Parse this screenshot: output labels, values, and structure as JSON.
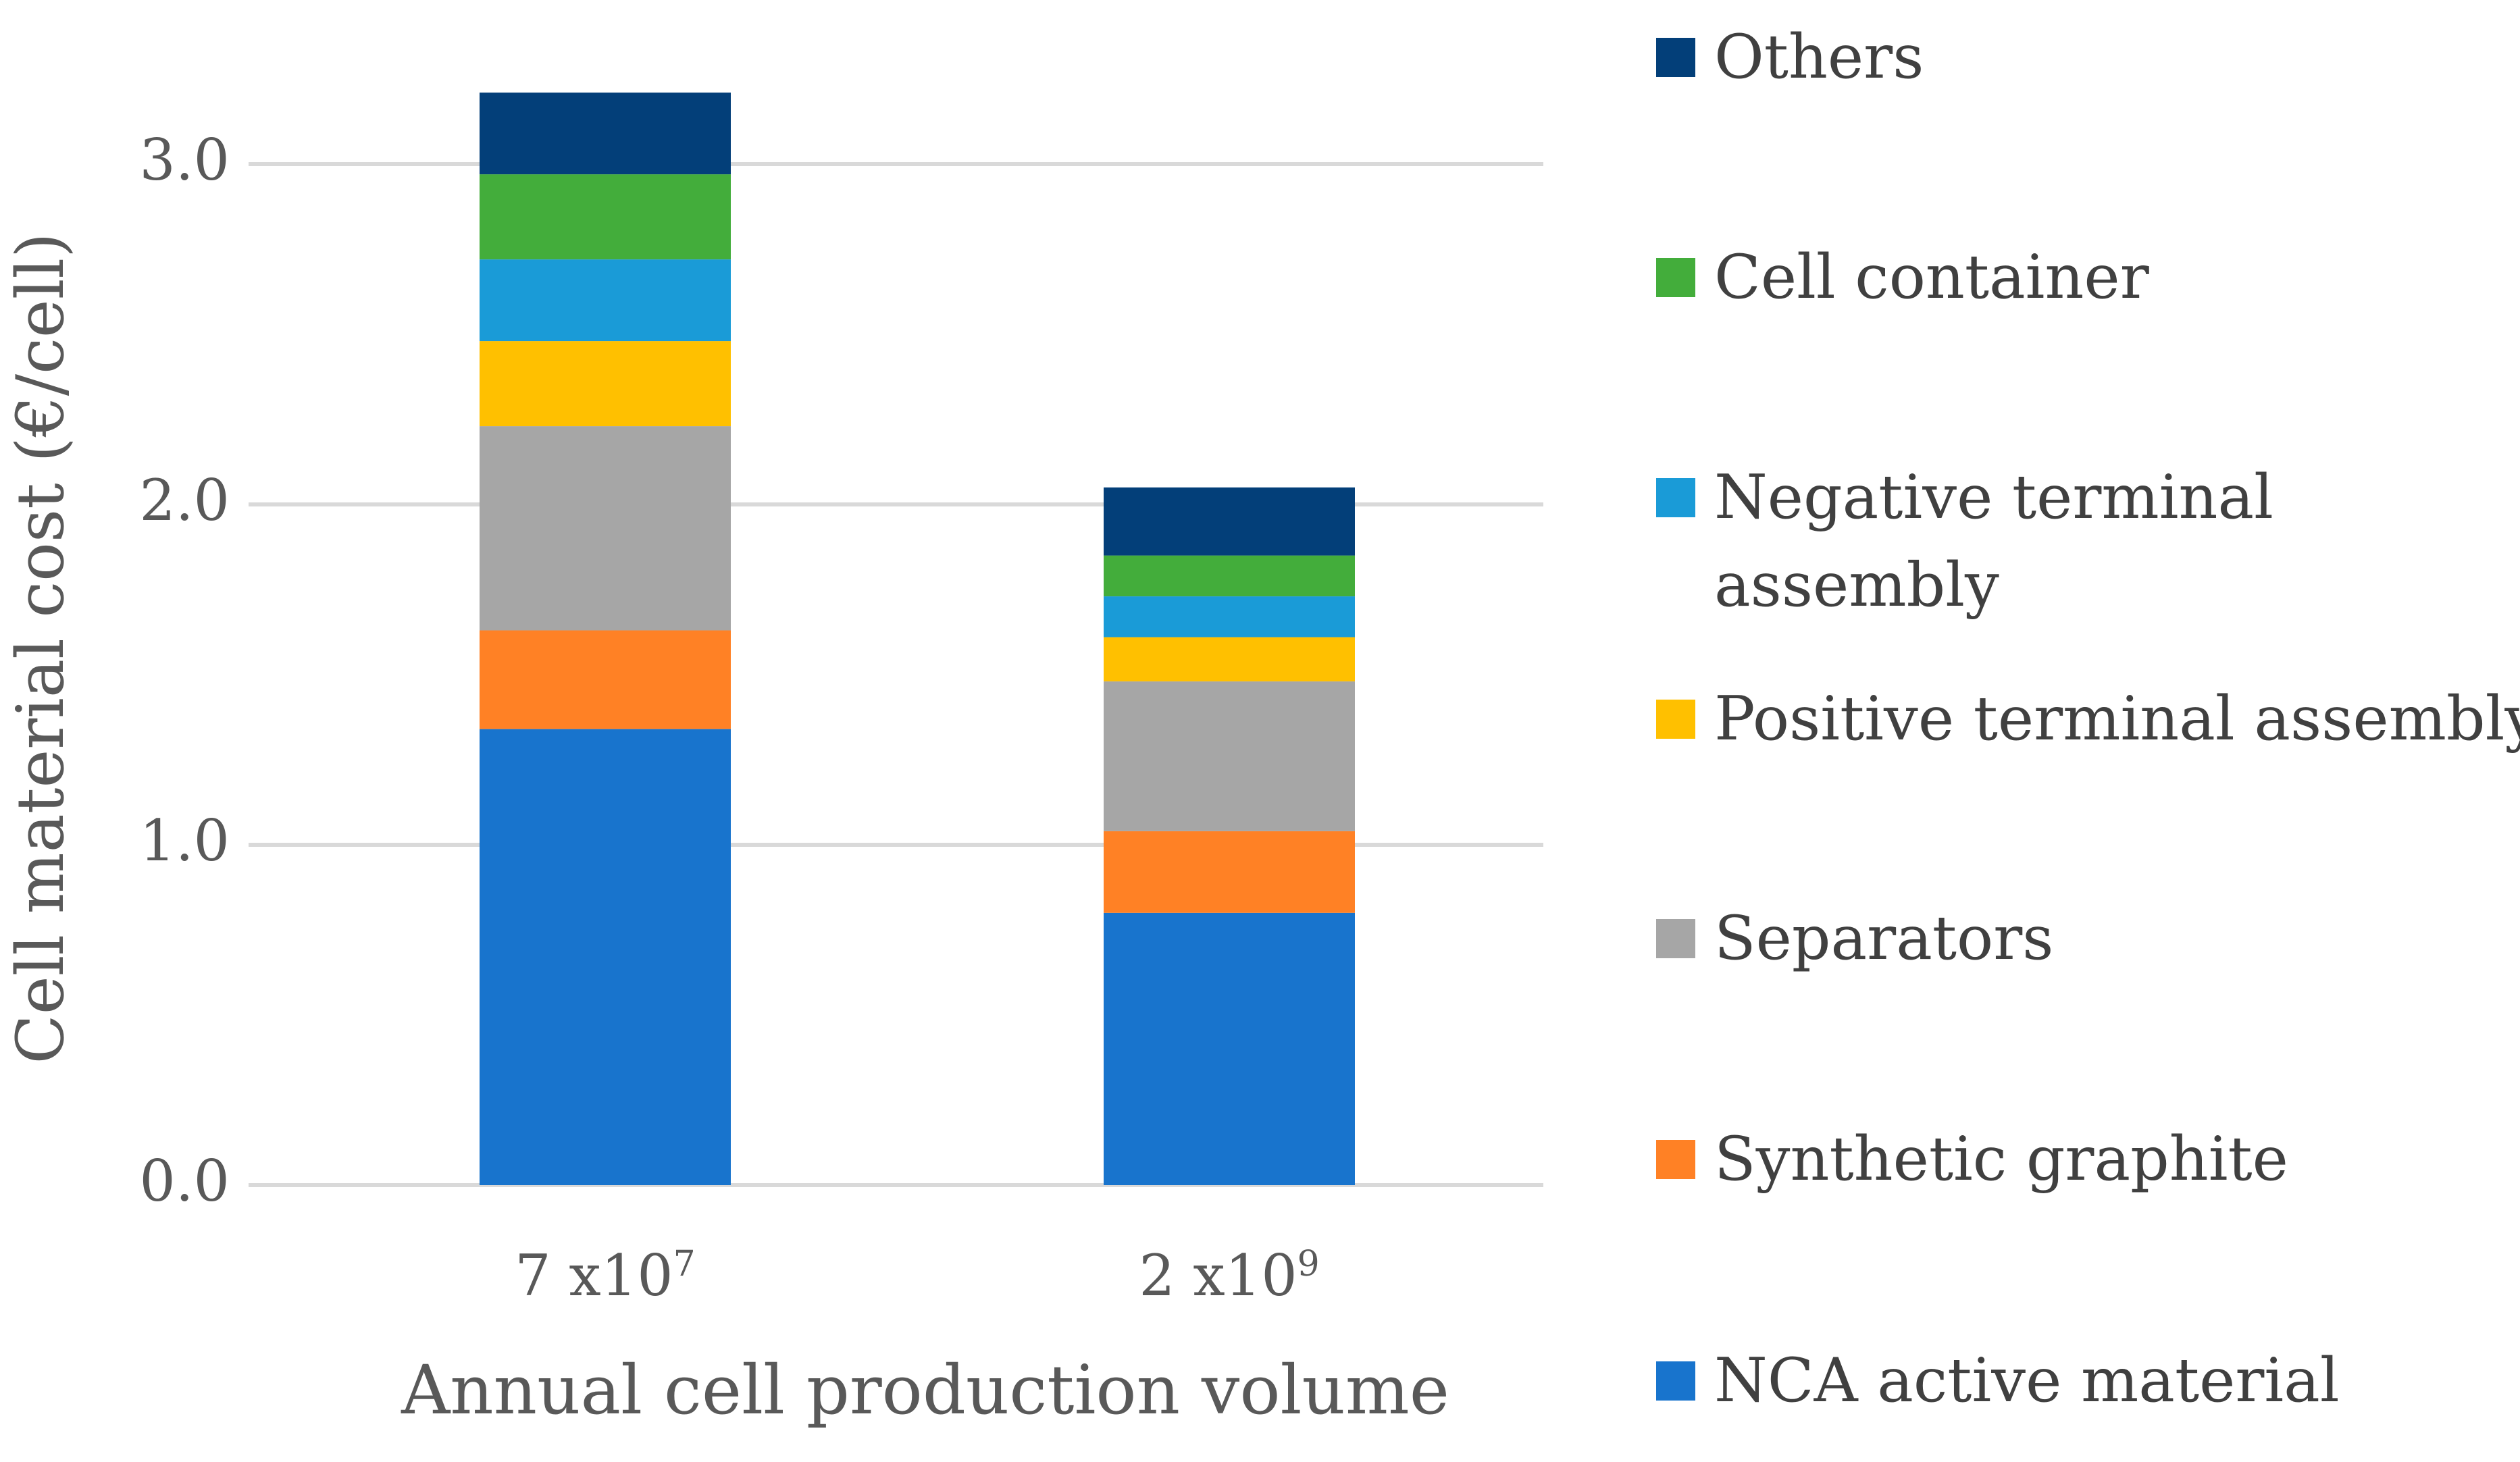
{
  "chart_data": {
    "type": "bar",
    "stacked": true,
    "categories": [
      "7 x10",
      "2 x10"
    ],
    "category_exponents": [
      "7",
      "9"
    ],
    "ylabel": "Cell material cost (€/cell)",
    "xlabel": "Annual cell production volume",
    "ylim": [
      0,
      3.0
    ],
    "yticks": [
      "0.0",
      "1.0",
      "2.0",
      "3.0"
    ],
    "grid": true,
    "legend_position": "right",
    "series": [
      {
        "name": "NCA active material",
        "color": "#1874CD",
        "values": [
          1.34,
          0.8
        ]
      },
      {
        "name": "Synthetic graphite",
        "color": "#FF8125",
        "values": [
          0.29,
          0.24
        ]
      },
      {
        "name": "Separators",
        "color": "#A6A6A6",
        "values": [
          0.6,
          0.44
        ]
      },
      {
        "name": "Positive terminal assembly",
        "color": "#FFC000",
        "values": [
          0.25,
          0.13
        ]
      },
      {
        "name": "Negative terminal assembly",
        "color": "#1A9BD7",
        "values": [
          0.24,
          0.12
        ]
      },
      {
        "name": "Cell container",
        "color": "#43AD3B",
        "values": [
          0.25,
          0.12
        ]
      },
      {
        "name": "Others",
        "color": "#033F79",
        "values": [
          0.24,
          0.2
        ]
      }
    ],
    "legend_order": [
      "Others",
      "Cell container",
      "Negative terminal\nassembly",
      "Positive terminal assembly",
      "Separators",
      "Synthetic graphite",
      "NCA active material"
    ]
  }
}
